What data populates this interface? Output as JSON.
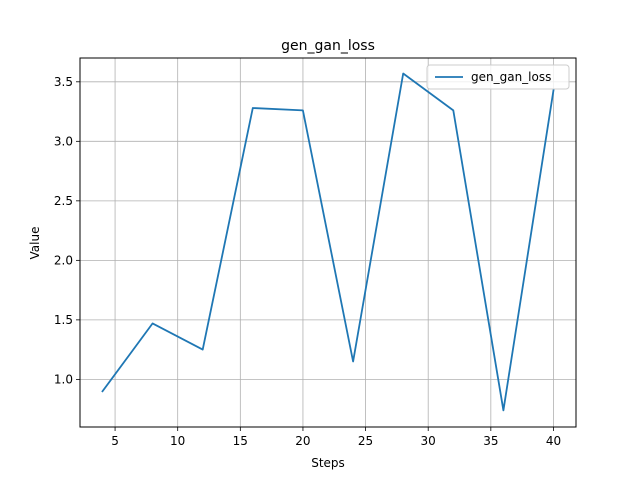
{
  "chart_data": {
    "type": "line",
    "title": "gen_gan_loss",
    "xlabel": "Steps",
    "ylabel": "Value",
    "xlim": [
      2.2,
      41.8
    ],
    "ylim": [
      0.6,
      3.7
    ],
    "xticks": [
      5,
      10,
      15,
      20,
      25,
      30,
      35,
      40
    ],
    "xtick_labels": [
      "5",
      "10",
      "15",
      "20",
      "25",
      "30",
      "35",
      "40"
    ],
    "yticks": [
      1.0,
      1.5,
      2.0,
      2.5,
      3.0,
      3.5
    ],
    "ytick_labels": [
      "1.0",
      "1.5",
      "2.0",
      "2.5",
      "3.0",
      "3.5"
    ],
    "grid": true,
    "legend": "upper right",
    "series": [
      {
        "name": "gen_gan_loss",
        "color": "#1f77b4",
        "x": [
          4,
          8,
          12,
          16,
          20,
          24,
          28,
          32,
          36,
          40
        ],
        "y": [
          0.9,
          1.47,
          1.25,
          3.28,
          3.26,
          1.15,
          3.57,
          3.26,
          0.74,
          3.43
        ]
      }
    ]
  }
}
